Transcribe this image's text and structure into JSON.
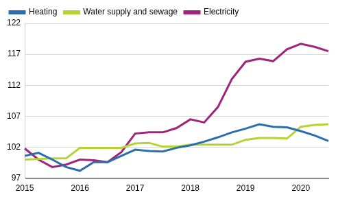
{
  "chart_data": {
    "type": "line",
    "categories": [
      "2015",
      null,
      null,
      null,
      "2016",
      null,
      null,
      null,
      "2017",
      null,
      null,
      null,
      "2018",
      null,
      null,
      null,
      "2019",
      null,
      null,
      null,
      "2020",
      null,
      null
    ],
    "series": [
      {
        "name": "Heating",
        "color": "#2a6ead",
        "values": [
          100.6,
          101.1,
          100.0,
          98.8,
          98.2,
          99.6,
          99.6,
          100.6,
          101.6,
          101.4,
          101.3,
          101.9,
          102.3,
          102.9,
          103.6,
          104.4,
          105.0,
          105.7,
          105.3,
          105.2,
          104.6,
          103.9,
          103.0
        ]
      },
      {
        "name": "Water supply and sewage",
        "color": "#b5d334",
        "values": [
          100.0,
          100.1,
          100.2,
          100.2,
          101.9,
          101.9,
          101.9,
          101.9,
          102.6,
          102.7,
          102.1,
          102.1,
          102.4,
          102.4,
          102.4,
          102.4,
          103.2,
          103.5,
          103.5,
          103.4,
          105.3,
          105.6,
          105.7
        ]
      },
      {
        "name": "Electricity",
        "color": "#a0237c",
        "values": [
          101.8,
          100.0,
          98.8,
          99.2,
          100.0,
          99.9,
          99.6,
          101.2,
          104.2,
          104.4,
          104.4,
          105.1,
          106.5,
          106.0,
          108.5,
          113.0,
          115.8,
          116.3,
          115.9,
          117.8,
          118.7,
          118.2,
          117.5
        ]
      }
    ],
    "ylim": [
      97,
      122
    ],
    "yticks": [
      97,
      102,
      107,
      112,
      117,
      122
    ],
    "grid": true,
    "legend": "top-left"
  }
}
